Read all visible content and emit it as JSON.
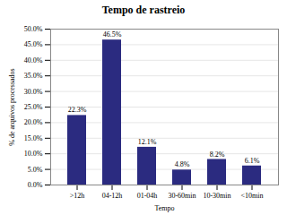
{
  "chart_data": {
    "type": "bar",
    "title": "Tempo de rastreio",
    "x_label": "Tempo",
    "y_label": "% de arquivos processados",
    "categories": [
      ">12h",
      "04-12h",
      "01-04h",
      "30-60min",
      "10-30min",
      "<10min"
    ],
    "values": [
      22.3,
      46.5,
      12.1,
      4.8,
      8.2,
      6.1
    ],
    "value_labels": [
      "22.3%",
      "46.5%",
      "12.1%",
      "4.8%",
      "8.2%",
      "6.1%"
    ],
    "data_labels": true,
    "color": "#2b2b80",
    "ylim": [
      0,
      50
    ],
    "yticks": [
      {
        "value": 0,
        "label": "0.0%"
      },
      {
        "value": 5,
        "label": "5.0%"
      },
      {
        "value": 10,
        "label": "10.0%"
      },
      {
        "value": 15,
        "label": "15.0%"
      },
      {
        "value": 20,
        "label": "20.0%"
      },
      {
        "value": 25,
        "label": "25.0%"
      },
      {
        "value": 30,
        "label": "30.0%"
      },
      {
        "value": 35,
        "label": "35.0%"
      },
      {
        "value": 40,
        "label": "40.0%"
      },
      {
        "value": 45,
        "label": "45.0%"
      },
      {
        "value": 50,
        "label": "50.0%"
      }
    ],
    "grid": true
  }
}
